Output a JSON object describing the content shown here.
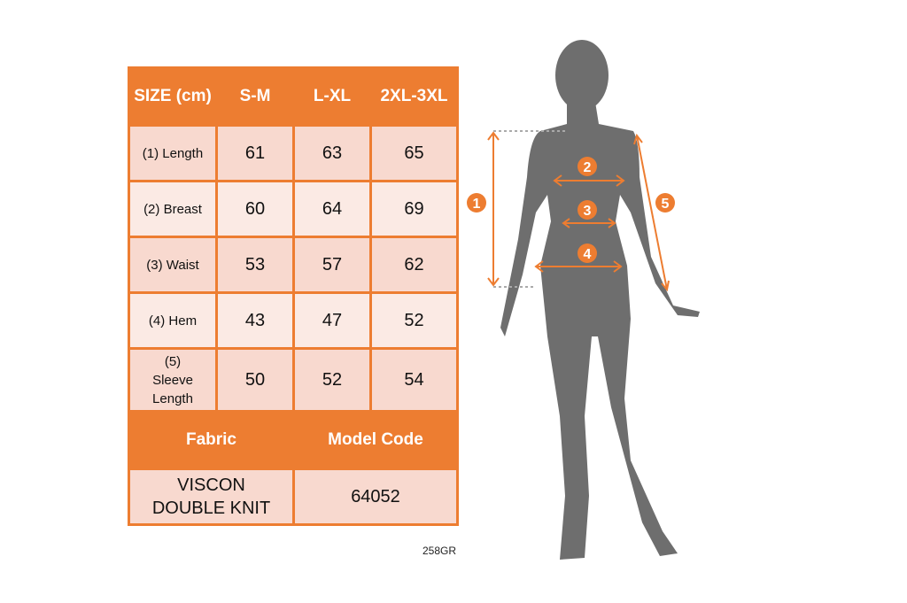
{
  "table": {
    "header": [
      "SIZE (cm)",
      "S-M",
      "L-XL",
      "2XL-3XL"
    ],
    "rows": [
      {
        "label": "(1) Length",
        "values": [
          "61",
          "63",
          "65"
        ]
      },
      {
        "label": "(2) Breast",
        "values": [
          "60",
          "64",
          "69"
        ]
      },
      {
        "label": "(3) Waist",
        "values": [
          "53",
          "57",
          "62"
        ]
      },
      {
        "label": "(4) Hem",
        "values": [
          "43",
          "47",
          "52"
        ]
      },
      {
        "label": "(5) Sleeve Length",
        "values": [
          "50",
          "52",
          "54"
        ]
      }
    ],
    "fabric_label": "Fabric",
    "model_code_label": "Model Code",
    "fabric_value": "VISCON DOUBLE KNIT",
    "model_code_value": "64052"
  },
  "product_code": "258GR",
  "figure": {
    "markers": [
      "1",
      "2",
      "3",
      "4",
      "5"
    ]
  },
  "colors": {
    "accent": "#ED7D31",
    "row_dark": "#F8D9CF",
    "row_light": "#FBEAE4",
    "silhouette": "#6E6E6E"
  }
}
